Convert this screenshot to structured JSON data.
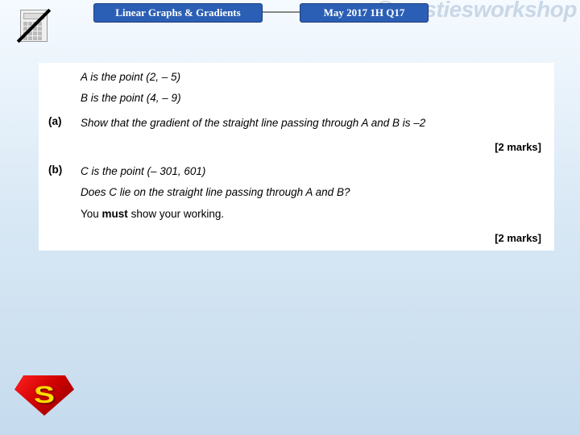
{
  "watermark": "@westiesworkshop",
  "header": {
    "topic": "Linear Graphs & Gradients",
    "source": "May 2017 1H Q17"
  },
  "question": {
    "intro": {
      "pointA": "A is the point (2, – 5)",
      "pointB": "B is the point (4, – 9)"
    },
    "partA": {
      "label": "(a)",
      "text": "Show that the gradient of the straight line passing through A and B is –2",
      "marks": "[2 marks]"
    },
    "partB": {
      "label": "(b)",
      "line1": "C is the point (– 301, 601)",
      "line2_pre": "Does C lie on the straight line passing through A and B?",
      "line3a": "You ",
      "line3b": "must",
      "line3c": " show your working.",
      "marks": "[2 marks]"
    }
  },
  "colors": {
    "pill_bg": "#2b5fb5",
    "pill_border": "#1a3d7a",
    "page_grad_top": "#f5faff",
    "page_grad_mid": "#d8e8f5",
    "page_grad_bot": "#c5dbed",
    "watermark_color": "#c9d7e6"
  }
}
